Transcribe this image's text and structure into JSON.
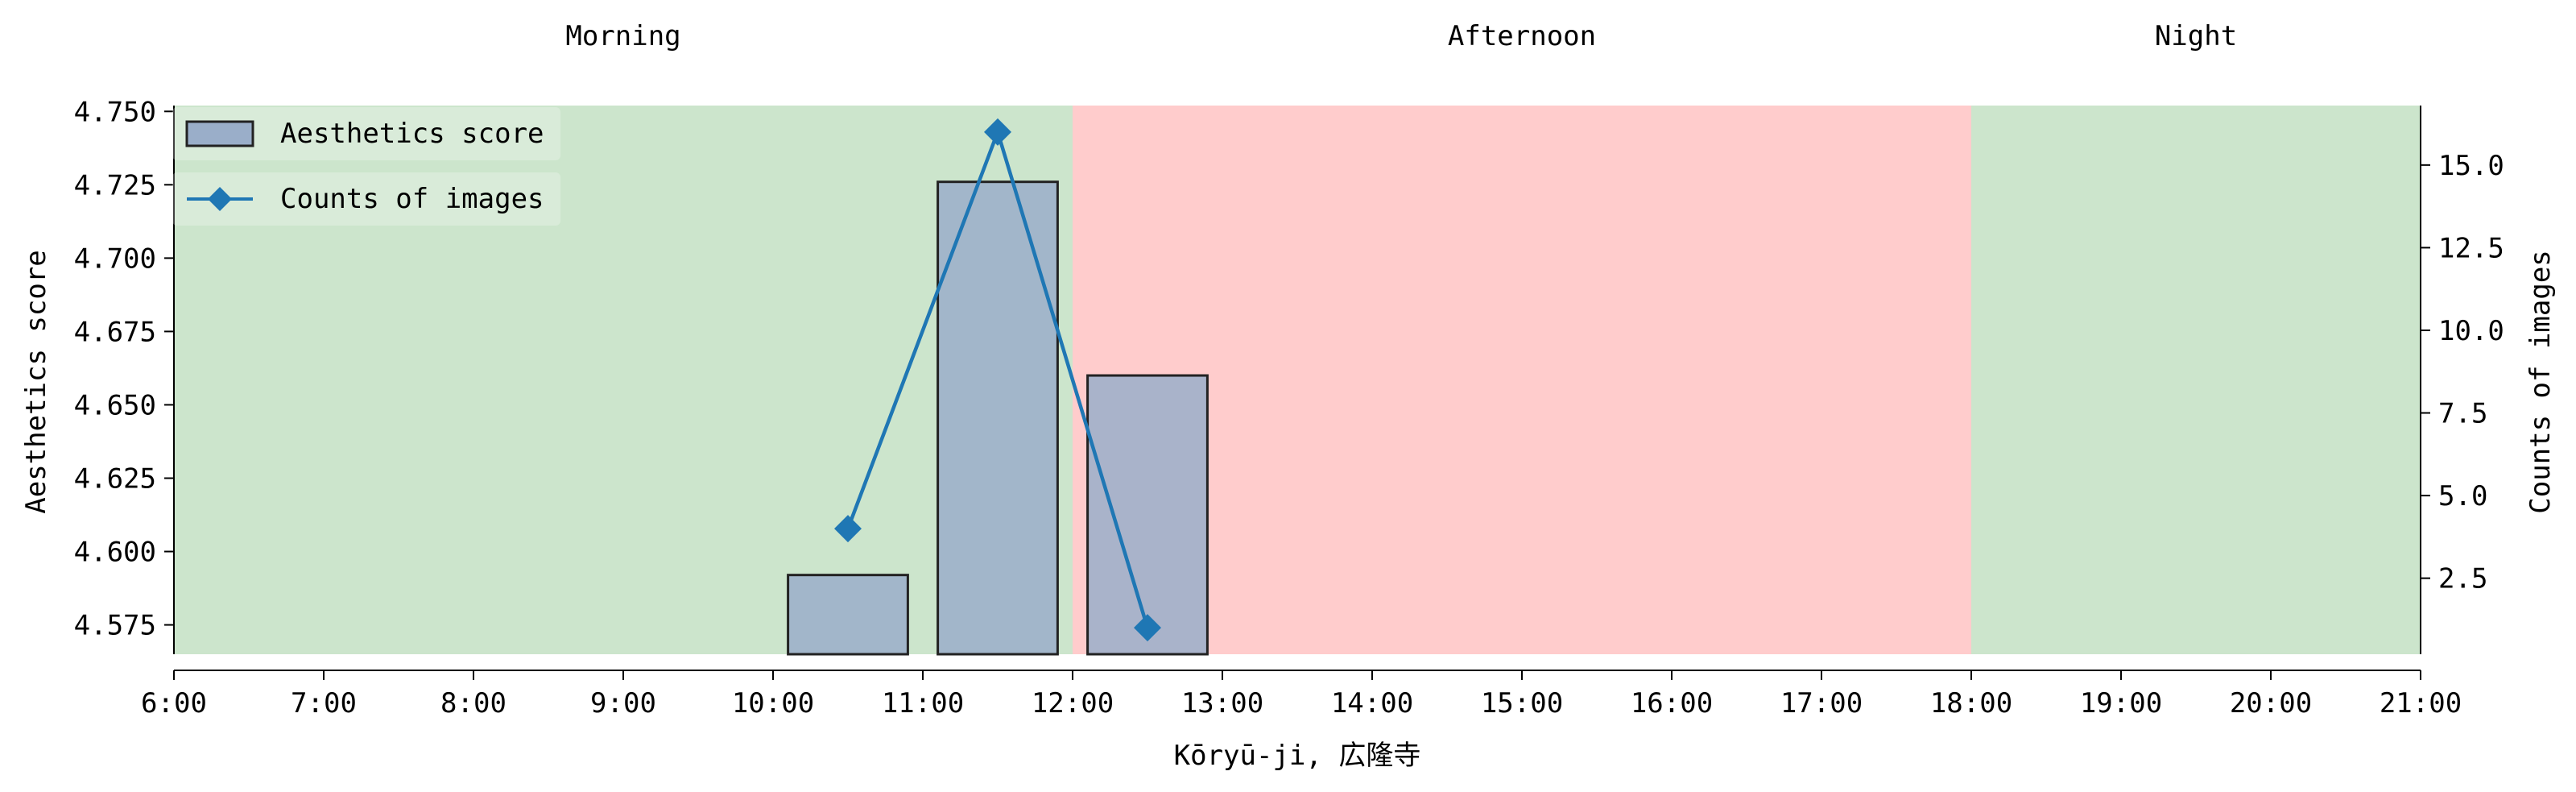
{
  "chart_data": {
    "type": "bar",
    "xlabel": "Kōryū-ji, 広隆寺",
    "ylabel": "Aesthetics score",
    "y2label": "Counts of images",
    "x_ticks": [
      "6:00",
      "7:00",
      "8:00",
      "9:00",
      "10:00",
      "11:00",
      "12:00",
      "13:00",
      "14:00",
      "15:00",
      "16:00",
      "17:00",
      "18:00",
      "19:00",
      "20:00",
      "21:00"
    ],
    "xlim": [
      6,
      21
    ],
    "ylim": [
      4.565,
      4.752
    ],
    "y_ticks": [
      "4.575",
      "4.600",
      "4.625",
      "4.650",
      "4.675",
      "4.700",
      "4.725",
      "4.750"
    ],
    "y_tick_values": [
      4.575,
      4.6,
      4.625,
      4.65,
      4.675,
      4.7,
      4.725,
      4.75
    ],
    "y2lim": [
      0.2,
      16.8
    ],
    "y2_ticks": [
      "2.5",
      "5.0",
      "7.5",
      "10.0",
      "12.5",
      "15.0"
    ],
    "y2_tick_values": [
      2.5,
      5.0,
      7.5,
      10.0,
      12.5,
      15.0
    ],
    "bands": [
      {
        "label": "Morning",
        "start": 6,
        "end": 12,
        "color": "#cce5cc"
      },
      {
        "label": "Afternoon",
        "start": 12,
        "end": 18,
        "color": "#ffcccc"
      },
      {
        "label": "Night",
        "start": 18,
        "end": 21,
        "color": "#cce5cc"
      }
    ],
    "bars": {
      "name": "Aesthetics score",
      "color": "#9aaec9",
      "x_start": [
        10.1,
        11.1,
        12.1
      ],
      "x_end": [
        10.9,
        11.9,
        12.9
      ],
      "values": [
        4.592,
        4.726,
        4.66
      ]
    },
    "line": {
      "name": "Counts of images",
      "color": "#1f77b4",
      "x": [
        10.5,
        11.5,
        12.5
      ],
      "values": [
        4,
        16,
        1
      ]
    },
    "legend": [
      "Aesthetics score",
      "Counts of images"
    ],
    "legend_position": "upper-left"
  }
}
